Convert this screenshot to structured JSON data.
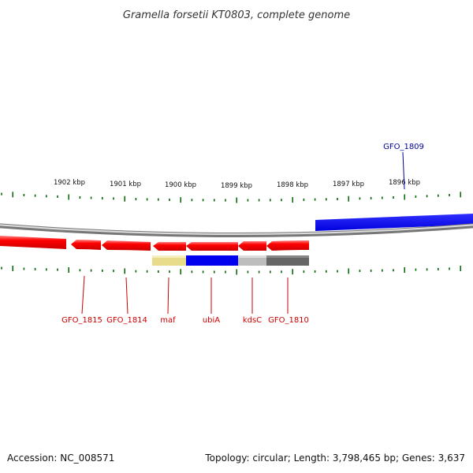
{
  "title": "Gramella forsetii KT0803, complete genome",
  "ruler_labels": [
    "1902 kbp",
    "1901 kbp",
    "1900 kbp",
    "1899 kbp",
    "1898 kbp",
    "1897 kbp",
    "1896 kbp"
  ],
  "genes_reverse": [
    {
      "label": "GFO_1815"
    },
    {
      "label": "GFO_1814"
    },
    {
      "label": "maf"
    },
    {
      "label": "ubiA"
    },
    {
      "label": "kdsC"
    },
    {
      "label": "GFO_1810"
    }
  ],
  "genes_forward": [
    {
      "label": "GFO_1809"
    }
  ],
  "colors": {
    "reverse_strand": "#ff0000",
    "forward_strand": "#0000ff",
    "reverse_label": "#cc0000",
    "forward_label": "#000099",
    "ticks": "#006600",
    "backbone": "#888888"
  },
  "footer": {
    "accession": "Accession: NC_008571",
    "stats": "Topology: circular; Length: 3,798,465 bp; Genes: 3,637"
  }
}
